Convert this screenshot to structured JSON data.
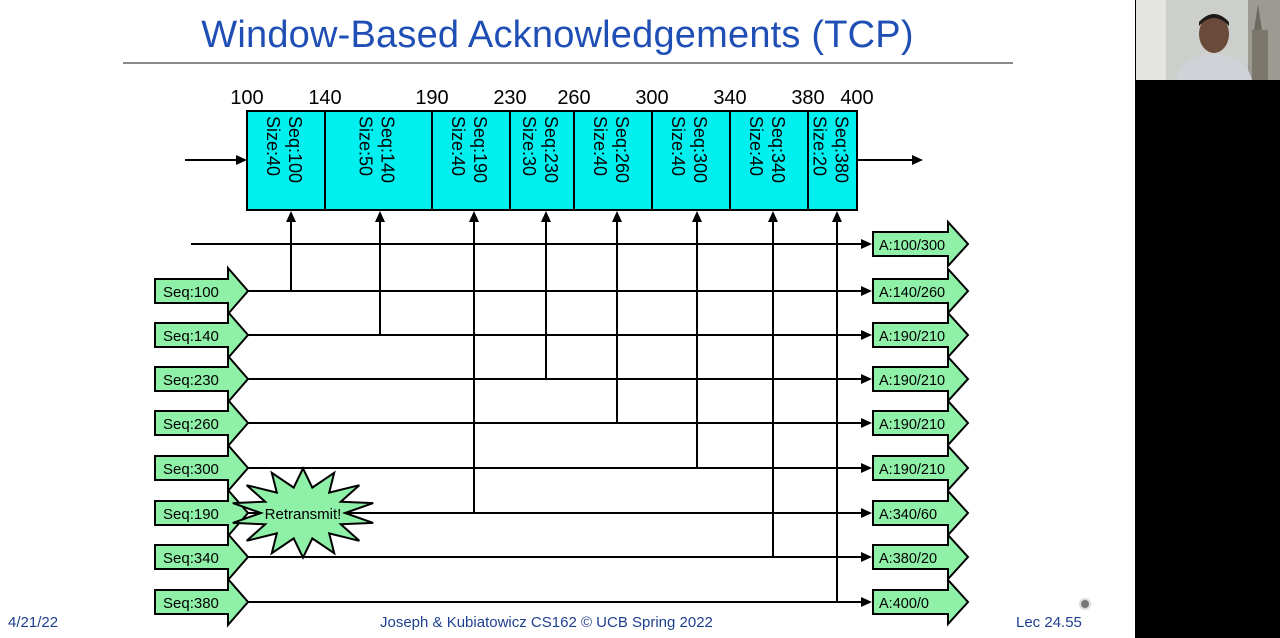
{
  "slide": {
    "title": "Window-Based Acknowledgements (TCP)",
    "footer_left": "4/21/22",
    "footer_center": "Joseph & Kubiatowicz CS162 © UCB Spring 2022",
    "footer_right": "Lec 24.55"
  },
  "colors": {
    "title": "#1f4fb5",
    "segment_fill": "#00f0f0",
    "packet_fill": "#8ff0a8",
    "burst_fill": "#8ff0a8"
  },
  "ruler": [
    "100",
    "140",
    "190",
    "230",
    "260",
    "300",
    "340",
    "380",
    "400"
  ],
  "segments": [
    {
      "seq": "Seq:100",
      "size": "Size:40"
    },
    {
      "seq": "Seq:140",
      "size": "Size:50"
    },
    {
      "seq": "Seq:190",
      "size": "Size:40"
    },
    {
      "seq": "Seq:230",
      "size": "Size:30"
    },
    {
      "seq": "Seq:260",
      "size": "Size:40"
    },
    {
      "seq": "Seq:300",
      "size": "Size:40"
    },
    {
      "seq": "Seq:340",
      "size": "Size:40"
    },
    {
      "seq": "Seq:380",
      "size": "Size:20"
    }
  ],
  "sends": [
    "Seq:100",
    "Seq:140",
    "Seq:230",
    "Seq:260",
    "Seq:300",
    "Seq:190",
    "Seq:340",
    "Seq:380"
  ],
  "acks": [
    "A:100/300",
    "A:140/260",
    "A:190/210",
    "A:190/210",
    "A:190/210",
    "A:190/210",
    "A:340/60",
    "A:380/20",
    "A:400/0"
  ],
  "retransmit_label": "Retransmit!"
}
